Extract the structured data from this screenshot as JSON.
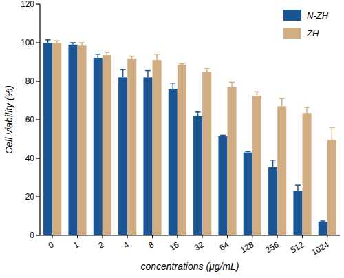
{
  "chart_data": {
    "type": "bar",
    "x_label": "concentrations (μg/mL)",
    "y_label": "Cell viability (%)",
    "categories": [
      "0",
      "1",
      "2",
      "4",
      "8",
      "16",
      "32",
      "64",
      "128",
      "256",
      "512",
      "1024"
    ],
    "series": [
      {
        "name": "N-ZH",
        "color": "#1c5594",
        "values": [
          100,
          99,
          92,
          82,
          82,
          76,
          62,
          51.5,
          43,
          35.5,
          23,
          7
        ],
        "errors": [
          1.5,
          1,
          2,
          4,
          3.5,
          3,
          2,
          0.5,
          0.5,
          3.5,
          3,
          0.5
        ]
      },
      {
        "name": "ZH",
        "color": "#d0ad83",
        "values": [
          100,
          98.5,
          93.5,
          91.5,
          91,
          88.5,
          85,
          77,
          72.5,
          67,
          63.5,
          49.5
        ],
        "errors": [
          1,
          1.5,
          1.5,
          1.5,
          3,
          0.5,
          1.5,
          2.5,
          2,
          4,
          3,
          6.5
        ]
      }
    ],
    "ylim": [
      0,
      120
    ],
    "yticks": [
      0,
      20,
      40,
      60,
      80,
      100,
      120
    ],
    "grid": false,
    "legend": "upper right"
  }
}
